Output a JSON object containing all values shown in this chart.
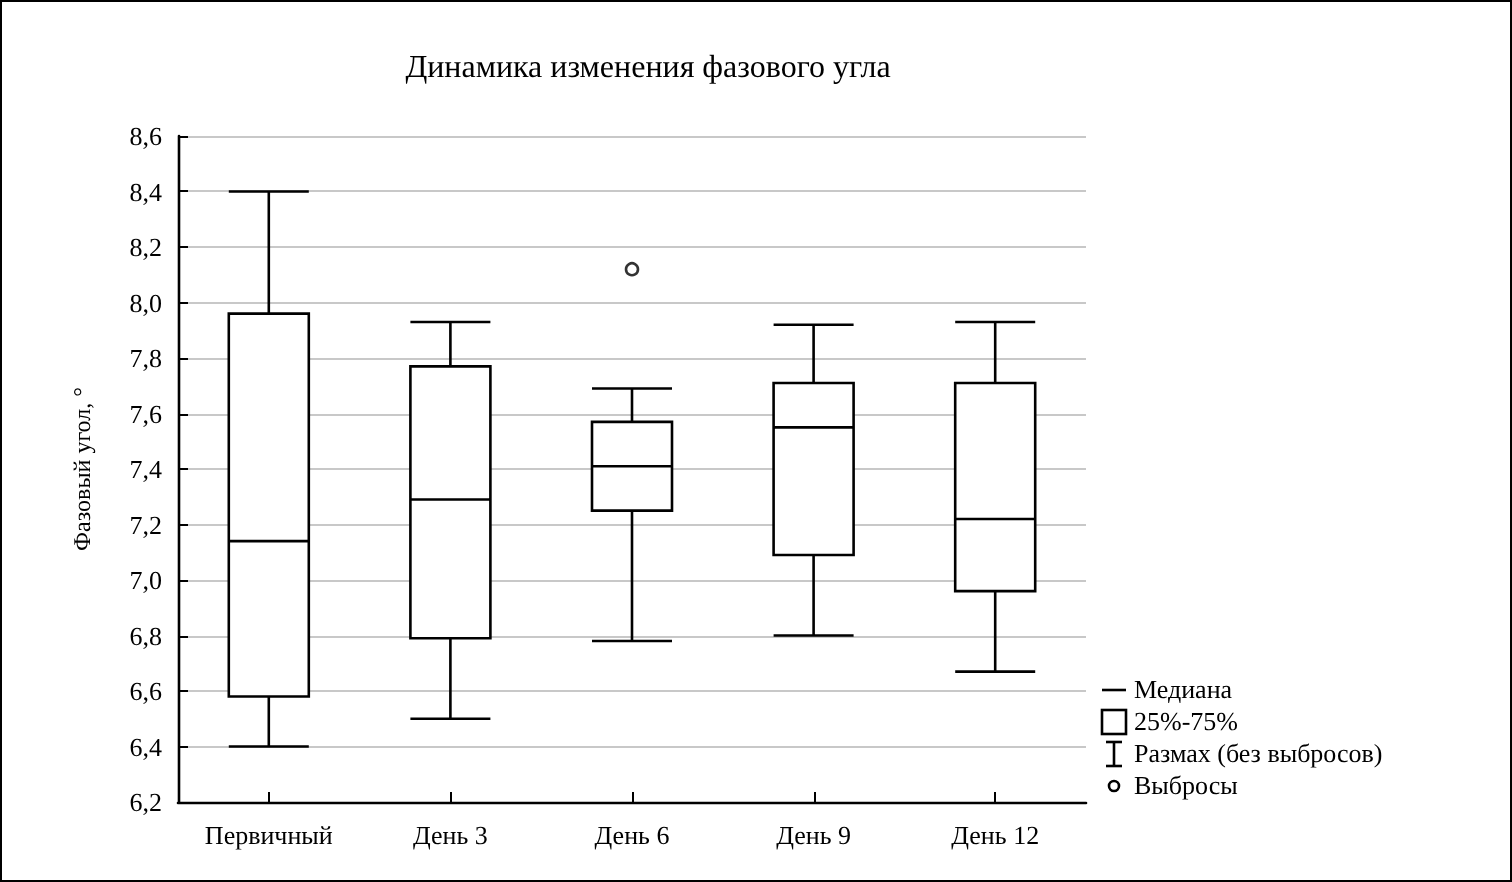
{
  "chart_data": {
    "type": "box",
    "title": "Динамика изменения фазового угла",
    "ylabel": "Фазовый угол, °",
    "categories": [
      "Первичный",
      "День 3",
      "День 6",
      "День 9",
      "День 12"
    ],
    "boxes": [
      {
        "low": 6.4,
        "q1": 6.58,
        "median": 7.14,
        "q3": 7.96,
        "high": 8.4
      },
      {
        "low": 6.5,
        "q1": 6.79,
        "median": 7.29,
        "q3": 7.77,
        "high": 7.93
      },
      {
        "low": 6.78,
        "q1": 7.25,
        "median": 7.41,
        "q3": 7.57,
        "high": 7.69,
        "outliers": [
          8.12
        ]
      },
      {
        "low": 6.8,
        "q1": 7.09,
        "median": 7.55,
        "q3": 7.71,
        "high": 7.92
      },
      {
        "low": 6.67,
        "q1": 6.96,
        "median": 7.22,
        "q3": 7.71,
        "high": 7.93
      }
    ],
    "color": "#000000",
    "ylim": [
      6.2,
      8.6
    ],
    "yticks": [
      {
        "value": 6.2,
        "label": "6,2"
      },
      {
        "value": 6.4,
        "label": "6,4"
      },
      {
        "value": 6.6,
        "label": "6,6"
      },
      {
        "value": 6.8,
        "label": "6,8"
      },
      {
        "value": 7.0,
        "label": "7,0"
      },
      {
        "value": 7.2,
        "label": "7,2"
      },
      {
        "value": 7.4,
        "label": "7,4"
      },
      {
        "value": 7.6,
        "label": "7,6"
      },
      {
        "value": 7.8,
        "label": "7,8"
      },
      {
        "value": 8.0,
        "label": "8,0"
      },
      {
        "value": 8.2,
        "label": "8,2"
      },
      {
        "value": 8.4,
        "label": "8,4"
      },
      {
        "value": 8.6,
        "label": "8,6"
      }
    ],
    "grid": "y",
    "marker": "circle",
    "annotations": [
      "Медиана",
      "25%-75%",
      "Размах (без выбросов)",
      "Выбросы"
    ]
  }
}
